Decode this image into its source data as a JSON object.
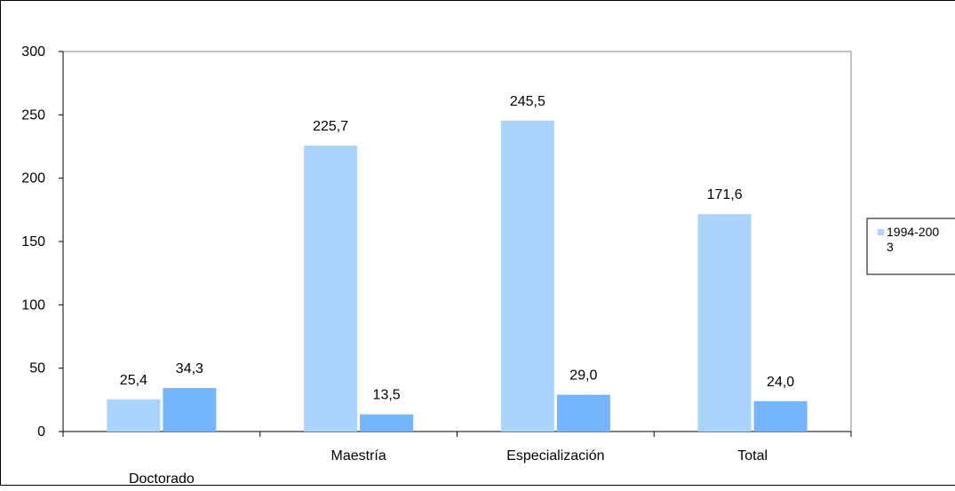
{
  "chart_data": {
    "type": "bar",
    "categories": [
      "Doctorado",
      "Maestría",
      "Especialización",
      "Total"
    ],
    "series": [
      {
        "name": "1994-2003",
        "color": "#a9d4fd",
        "values": [
          25.4,
          225.7,
          245.5,
          171.6
        ]
      },
      {
        "name": "",
        "color": "#74b6fd",
        "values": [
          34.3,
          13.5,
          29.0,
          24.0
        ]
      }
    ],
    "data_labels": [
      [
        "25,4",
        "225,7",
        "245,5",
        "171,6"
      ],
      [
        "34,3",
        "13,5",
        "29,0",
        "24,0"
      ]
    ],
    "yticks": [
      "0",
      "50",
      "100",
      "150",
      "200",
      "250",
      "300"
    ],
    "ylim": [
      0,
      300
    ],
    "grid": false,
    "legend": {
      "position": "right",
      "label_line1": "1994-200",
      "label_line2": "3"
    },
    "title": "",
    "xlabel": "",
    "ylabel": ""
  }
}
